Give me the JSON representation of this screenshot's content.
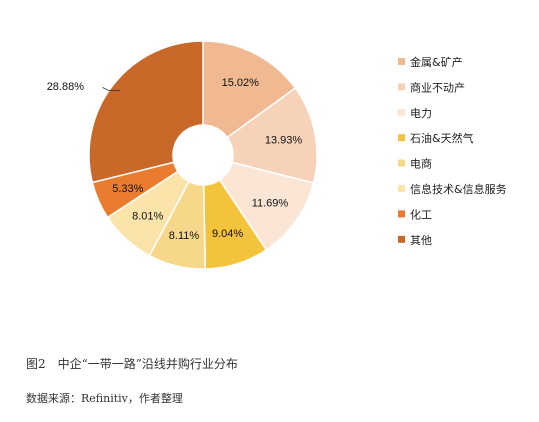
{
  "chart_data": {
    "type": "pie",
    "variant": "donut",
    "title": "",
    "categories": [
      "金属&矿产",
      "商业不动产",
      "电力",
      "石油&天然气",
      "电商",
      "信息技术&信息服务",
      "化工",
      "其他"
    ],
    "values": [
      15.02,
      13.93,
      11.69,
      9.04,
      8.11,
      8.01,
      5.33,
      28.88
    ],
    "labels": [
      "15.02%",
      "13.93%",
      "11.69%",
      "9.04%",
      "8.11%",
      "8.01%",
      "5.33%",
      "28.88%"
    ],
    "unit": "%",
    "colors": [
      "#F0B991",
      "#F6D2B8",
      "#FBE6D6",
      "#F3C33C",
      "#F7D88A",
      "#FAE4A9",
      "#E97C2E",
      "#C8692A"
    ],
    "legend_position": "right"
  },
  "figure": {
    "caption": "图2　中企“一带一路”沿线并购行业分布",
    "source": "数据来源：Refinitiv，作者整理"
  }
}
